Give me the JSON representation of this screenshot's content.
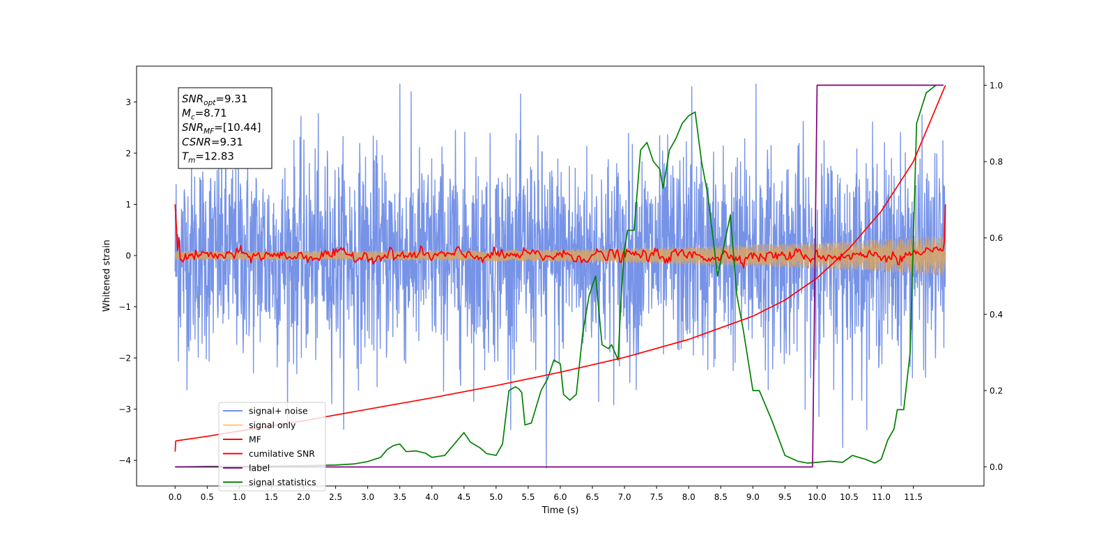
{
  "chart_data": {
    "type": "line",
    "xlabel": "Time (s)",
    "ylabel": "Whitened strain",
    "xlim": [
      -0.6,
      12.6
    ],
    "ylim": [
      -4.5,
      3.7
    ],
    "y2lim": [
      -0.05,
      1.05
    ],
    "x_ticks": [
      0.0,
      0.5,
      1.0,
      1.5,
      2.0,
      2.5,
      3.0,
      3.5,
      4.0,
      4.5,
      5.0,
      5.5,
      6.0,
      6.5,
      7.0,
      7.5,
      8.0,
      8.5,
      9.0,
      9.5,
      10.0,
      10.5,
      11.0,
      11.5
    ],
    "x_tick_labels": [
      "0.0",
      "0.5",
      "1.0",
      "1.5",
      "2.0",
      "2.5",
      "3.0",
      "3.5",
      "4.0",
      "4.5",
      "5.0",
      "5.5",
      "6.0",
      "6.5",
      "7.0",
      "7.5",
      "8.0",
      "8.5",
      "9.0",
      "9.5",
      "10.0",
      "10.5",
      "11.0",
      "11.5"
    ],
    "y_ticks": [
      3,
      2,
      1,
      0,
      -1,
      -2,
      -3,
      -4
    ],
    "y_tick_labels": [
      "3",
      "2",
      "1",
      "0",
      "−1",
      "−2",
      "−3",
      "−4"
    ],
    "y2_ticks": [
      1.0,
      0.8,
      0.6,
      0.4,
      0.2,
      0.0
    ],
    "y2_tick_labels": [
      "1.0",
      "0.8",
      "0.6",
      "0.4",
      "0.2",
      "0.0"
    ],
    "grid": false,
    "legend_position": "lower-left",
    "annotation_box": [
      {
        "base": "SNR",
        "sub": "opt",
        "rest": "=9.31"
      },
      {
        "base": "M",
        "sub": "c",
        "rest": "=8.71"
      },
      {
        "base": "SNR",
        "sub": "MF",
        "rest": "=[10.44]"
      },
      {
        "base": "CSNR",
        "sub": "",
        "rest": "=9.31"
      },
      {
        "base": "T",
        "sub": "m",
        "rest": "=12.83"
      }
    ],
    "series": [
      {
        "name": "signal+ noise",
        "axis": "left",
        "color": "#6f8de6",
        "kind": "noise",
        "x_range": [
          0,
          12
        ],
        "amplitude_std": 1.0,
        "peaks": [
          [
            3.5,
            3.35
          ],
          [
            5.78,
            -4.15
          ],
          [
            8.05,
            3.3
          ],
          [
            9.05,
            3.35
          ],
          [
            10.4,
            -3.75
          ]
        ]
      },
      {
        "name": "signal only",
        "axis": "left",
        "color": "#d4a46b",
        "kind": "chirp",
        "x_range": [
          0,
          12
        ],
        "amplitude_start": 0.08,
        "amplitude_end": 0.38
      },
      {
        "name": "MF",
        "axis": "left",
        "color": "#ff0000",
        "kind": "mf",
        "x_range": [
          0,
          12
        ],
        "start_value": 1.0,
        "baseline": 0.0,
        "fluctuation": 0.12,
        "end_value": 1.0
      },
      {
        "name": "cumilative SNR",
        "axis": "right",
        "color": "#ff0000",
        "x": [
          0.0,
          0.01,
          0.5,
          1.0,
          2.0,
          3.0,
          4.0,
          5.0,
          6.0,
          7.0,
          8.0,
          9.0,
          9.5,
          10.0,
          10.5,
          11.0,
          11.5,
          12.0
        ],
        "y": [
          0.04,
          0.068,
          0.08,
          0.094,
          0.121,
          0.151,
          0.181,
          0.213,
          0.248,
          0.287,
          0.334,
          0.395,
          0.437,
          0.495,
          0.572,
          0.67,
          0.8,
          1.0
        ]
      },
      {
        "name": "label",
        "axis": "right",
        "color": "#800080",
        "x": [
          0.0,
          9.93,
          10.0,
          11.97
        ],
        "y": [
          0.0,
          0.0,
          1.0,
          1.0
        ]
      },
      {
        "name": "signal statistics",
        "axis": "right",
        "color": "#008000",
        "x": [
          0.0,
          0.5,
          1.0,
          1.5,
          2.0,
          2.5,
          2.8,
          3.0,
          3.2,
          3.3,
          3.4,
          3.5,
          3.6,
          3.75,
          3.9,
          4.0,
          4.2,
          4.45,
          4.5,
          4.6,
          4.75,
          4.85,
          5.0,
          5.1,
          5.2,
          5.3,
          5.35,
          5.4,
          5.45,
          5.55,
          5.7,
          5.8,
          5.9,
          6.0,
          6.05,
          6.15,
          6.25,
          6.35,
          6.45,
          6.55,
          6.65,
          6.75,
          6.8,
          6.9,
          6.95,
          7.0,
          7.05,
          7.15,
          7.25,
          7.3,
          7.35,
          7.45,
          7.55,
          7.6,
          7.7,
          7.8,
          7.9,
          8.0,
          8.1,
          8.2,
          8.3,
          8.45,
          8.55,
          8.65,
          8.75,
          8.85,
          9.0,
          9.1,
          9.3,
          9.5,
          9.7,
          9.85,
          10.0,
          10.2,
          10.4,
          10.55,
          10.65,
          10.75,
          10.9,
          11.0,
          11.1,
          11.2,
          11.25,
          11.35,
          11.45,
          11.55,
          11.7,
          11.85
        ],
        "y": [
          0.0,
          0.001,
          0.001,
          0.002,
          0.003,
          0.005,
          0.008,
          0.014,
          0.025,
          0.045,
          0.056,
          0.06,
          0.04,
          0.042,
          0.036,
          0.025,
          0.03,
          0.08,
          0.09,
          0.065,
          0.05,
          0.035,
          0.03,
          0.06,
          0.2,
          0.21,
          0.205,
          0.195,
          0.11,
          0.115,
          0.2,
          0.23,
          0.28,
          0.27,
          0.19,
          0.175,
          0.19,
          0.35,
          0.45,
          0.5,
          0.32,
          0.31,
          0.32,
          0.28,
          0.45,
          0.57,
          0.62,
          0.62,
          0.83,
          0.84,
          0.85,
          0.8,
          0.78,
          0.73,
          0.83,
          0.86,
          0.9,
          0.92,
          0.93,
          0.8,
          0.71,
          0.5,
          0.58,
          0.66,
          0.45,
          0.36,
          0.2,
          0.2,
          0.12,
          0.03,
          0.015,
          0.01,
          0.012,
          0.015,
          0.012,
          0.03,
          0.025,
          0.02,
          0.01,
          0.02,
          0.07,
          0.1,
          0.15,
          0.15,
          0.3,
          0.9,
          0.98,
          1.0
        ]
      }
    ]
  }
}
